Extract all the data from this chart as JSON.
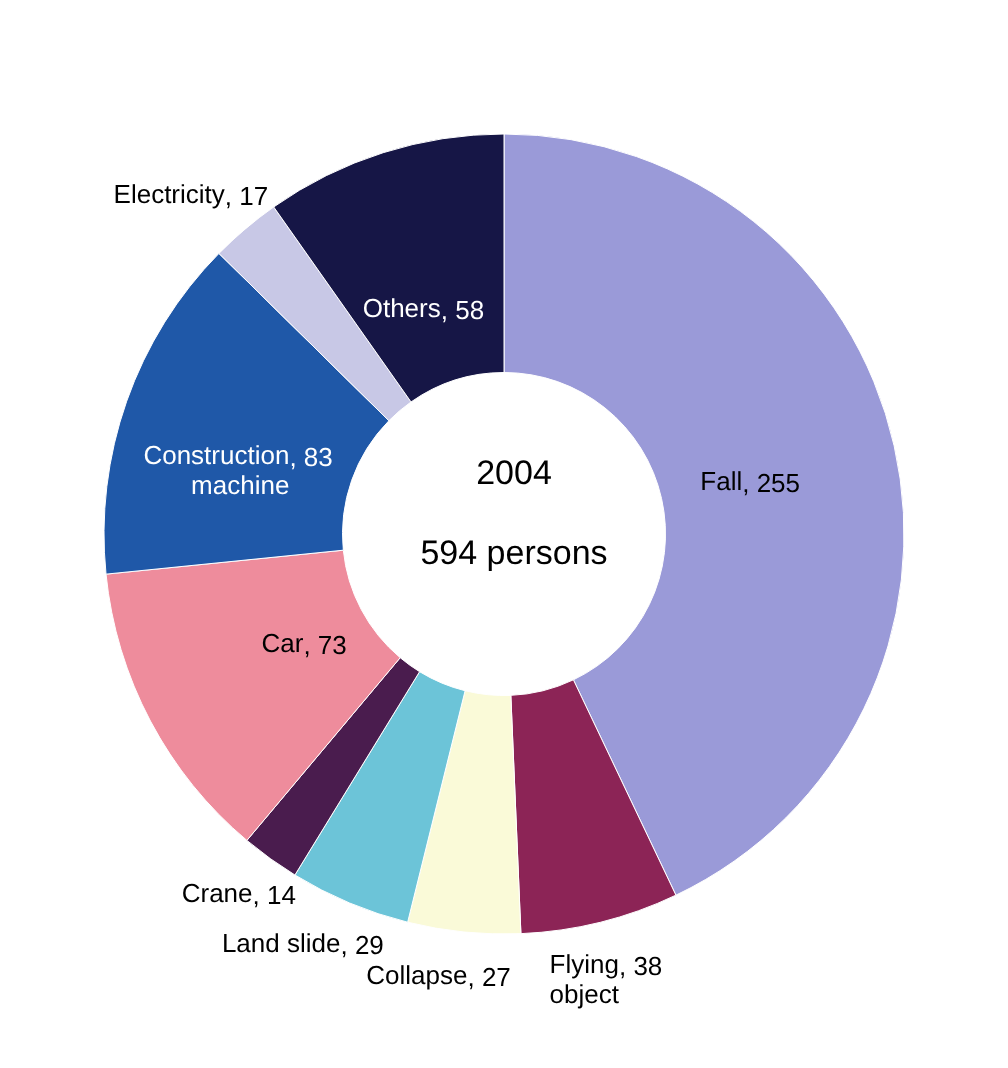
{
  "chart_data": {
    "type": "donut",
    "categories": [
      "Fall",
      "Flying object",
      "Collapse",
      "Land slide",
      "Crane",
      "Car",
      "Construction machine",
      "Electricity",
      "Others"
    ],
    "values": [
      255,
      38,
      27,
      29,
      14,
      73,
      83,
      17,
      58
    ],
    "colors": [
      "#9a9ad8",
      "#8c2456",
      "#fafad8",
      "#6cc4d8",
      "#4a1c4e",
      "#ee8c9c",
      "#1f58a8",
      "#c8c8e6",
      "#161646"
    ],
    "data_labels": true,
    "value_labels": [
      ", 255",
      ", 38",
      ", 27",
      ", 29",
      ", 14",
      ", 73",
      ", 83",
      ", 17",
      ", 58"
    ],
    "legend": false,
    "annotations": [
      "2004",
      "594 persons"
    ]
  }
}
